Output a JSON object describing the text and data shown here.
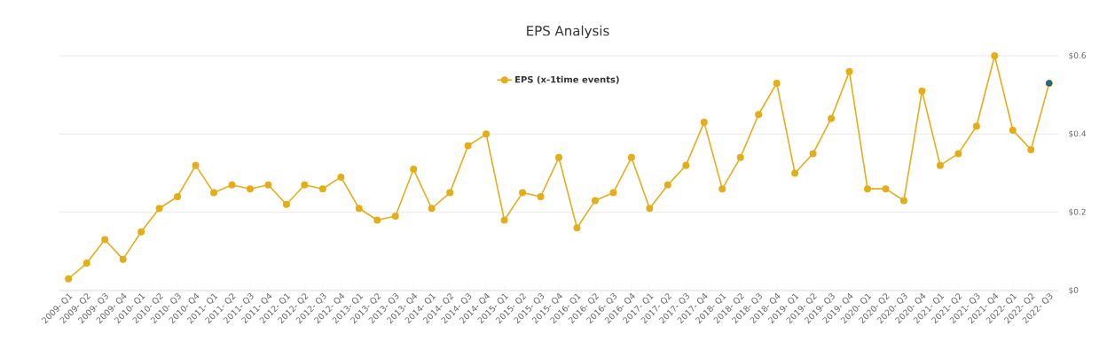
{
  "chart_data": {
    "type": "line",
    "title": "EPS Analysis",
    "categories": [
      "2009- Q1",
      "2009- Q2",
      "2009- Q3",
      "2009- Q4",
      "2010- Q1",
      "2010- Q2",
      "2010- Q3",
      "2010- Q4",
      "2011- Q1",
      "2011- Q2",
      "2011- Q3",
      "2011- Q4",
      "2012- Q1",
      "2012- Q2",
      "2012- Q3",
      "2012- Q4",
      "2013- Q1",
      "2013- Q2",
      "2013- Q3",
      "2013- Q4",
      "2014- Q1",
      "2014- Q2",
      "2014- Q3",
      "2014- Q4",
      "2015- Q1",
      "2015- Q2",
      "2015- Q3",
      "2015- Q4",
      "2016- Q1",
      "2016- Q2",
      "2016- Q3",
      "2016- Q4",
      "2017- Q1",
      "2017- Q2",
      "2017- Q3",
      "2017- Q4",
      "2018- Q1",
      "2018- Q2",
      "2018- Q3",
      "2018- Q4",
      "2019- Q1",
      "2019- Q2",
      "2019- Q3",
      "2019- Q4",
      "2020- Q1",
      "2020- Q2",
      "2020- Q3",
      "2020- Q4",
      "2021- Q1",
      "2021- Q2",
      "2021- Q3",
      "2021- Q4",
      "2022- Q1",
      "2022- Q2",
      "2022- Q3"
    ],
    "series": [
      {
        "name": "EPS (x-1time events)",
        "color": "#e3ae1a",
        "values": [
          0.03,
          0.07,
          0.13,
          0.08,
          0.15,
          0.21,
          0.24,
          0.32,
          0.25,
          0.27,
          0.26,
          0.27,
          0.22,
          0.27,
          0.26,
          0.29,
          0.21,
          0.18,
          0.19,
          0.31,
          0.21,
          0.25,
          0.37,
          0.4,
          0.18,
          0.25,
          0.24,
          0.34,
          0.16,
          0.23,
          0.25,
          0.34,
          0.21,
          0.27,
          0.32,
          0.43,
          0.26,
          0.34,
          0.45,
          0.53,
          0.3,
          0.35,
          0.44,
          0.56,
          0.26,
          0.26,
          0.23,
          0.51,
          0.32,
          0.35,
          0.42,
          0.6,
          0.41,
          0.36,
          0.53
        ],
        "colors": [
          "#e3ae1a",
          "#e3ae1a",
          "#e3ae1a",
          "#e3ae1a",
          "#e3ae1a",
          "#e3ae1a",
          "#e3ae1a",
          "#e3ae1a",
          "#e3ae1a",
          "#e3ae1a",
          "#e3ae1a",
          "#e3ae1a",
          "#e3ae1a",
          "#e3ae1a",
          "#e3ae1a",
          "#e3ae1a",
          "#e3ae1a",
          "#e3ae1a",
          "#e3ae1a",
          "#e3ae1a",
          "#e3ae1a",
          "#e3ae1a",
          "#e3ae1a",
          "#e3ae1a",
          "#e3ae1a",
          "#e3ae1a",
          "#e3ae1a",
          "#e3ae1a",
          "#e3ae1a",
          "#e3ae1a",
          "#e3ae1a",
          "#e3ae1a",
          "#e3ae1a",
          "#e3ae1a",
          "#e3ae1a",
          "#e3ae1a",
          "#e3ae1a",
          "#e3ae1a",
          "#e3ae1a",
          "#e3ae1a",
          "#e3ae1a",
          "#e3ae1a",
          "#e3ae1a",
          "#e3ae1a",
          "#e3ae1a",
          "#e3ae1a",
          "#e3ae1a",
          "#e3ae1a",
          "#e3ae1a",
          "#e3ae1a",
          "#e3ae1a",
          "#e3ae1a",
          "#e3ae1a",
          "#e3ae1a",
          "#0f6fa8"
        ]
      }
    ],
    "ylim": [
      0,
      0.6
    ],
    "yticks": [
      {
        "value": 0,
        "label": "$0"
      },
      {
        "value": 0.2,
        "label": "$0.2"
      },
      {
        "value": 0.4,
        "label": "$0.4"
      },
      {
        "value": 0.6,
        "label": "$0.6"
      }
    ],
    "grid": "y",
    "legend": "top",
    "marker": "circle",
    "line_style": "solid"
  }
}
